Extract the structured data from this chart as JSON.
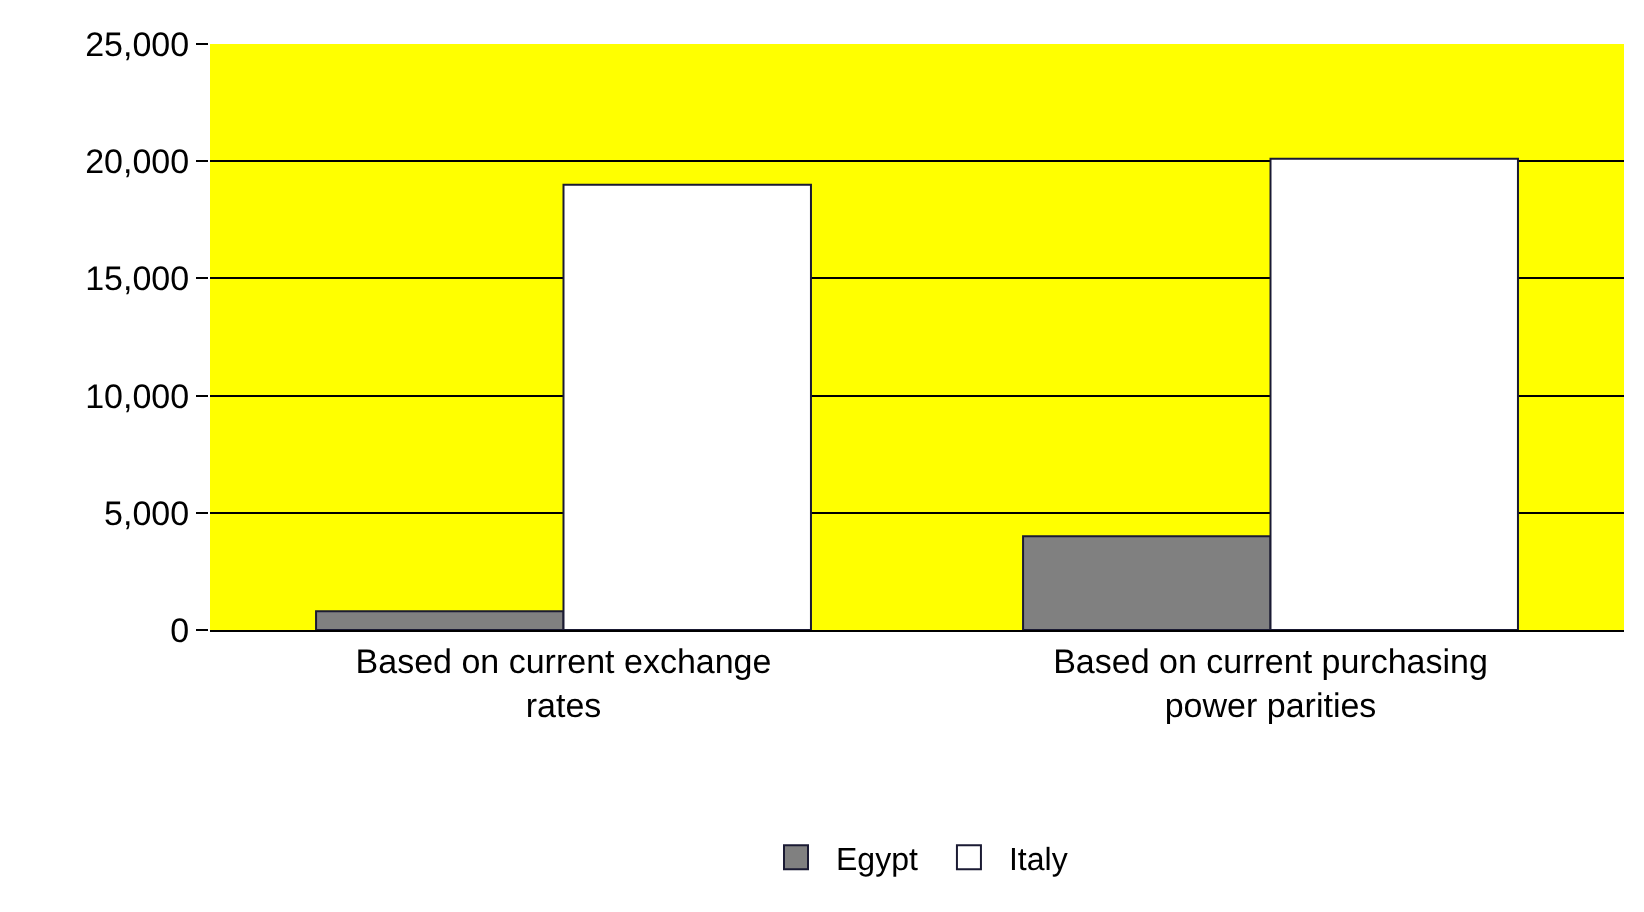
{
  "chart_data": {
    "type": "bar",
    "categories": [
      "Based on current exchange rates",
      "Based on current purchasing power parities"
    ],
    "series": [
      {
        "name": "Egypt",
        "color": "#808080",
        "values": [
          800,
          4000
        ]
      },
      {
        "name": "Italy",
        "color": "#ffffff",
        "values": [
          19000,
          20100
        ]
      }
    ],
    "ylim": [
      0,
      25000
    ],
    "yticks": [
      {
        "value": 0,
        "label": "0"
      },
      {
        "value": 5000,
        "label": "5,000"
      },
      {
        "value": 10000,
        "label": "10,000"
      },
      {
        "value": 15000,
        "label": "15,000"
      },
      {
        "value": 20000,
        "label": "20,000"
      },
      {
        "value": 25000,
        "label": "25,000"
      }
    ],
    "grid": "y",
    "legend": "bottom"
  }
}
